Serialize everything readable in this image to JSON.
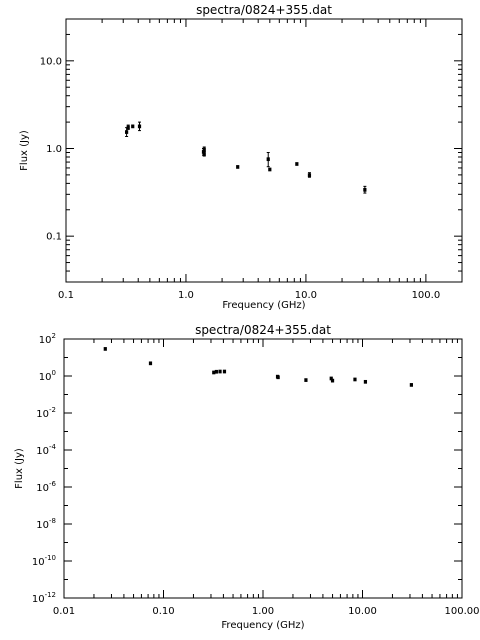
{
  "chart_data": [
    {
      "type": "scatter",
      "title": "spectra/0824+355.dat",
      "xlabel": "Frequency (GHz)",
      "ylabel": "Flux (Jy)",
      "x_scale": "log",
      "y_scale": "log",
      "xlim": [
        0.1,
        200
      ],
      "ylim": [
        0.03,
        30
      ],
      "x_ticks": [
        0.1,
        1.0,
        10.0,
        100.0
      ],
      "x_tick_labels": [
        "0.1",
        "1.0",
        "10.0",
        "100.0"
      ],
      "y_ticks": [
        0.1,
        1.0,
        10.0
      ],
      "y_tick_labels": [
        "0.1",
        "1.0",
        "10.0"
      ],
      "grid": false,
      "series": [
        {
          "points": [
            {
              "x": 0.32,
              "y": 1.55,
              "err": 0.18
            },
            {
              "x": 0.33,
              "y": 1.75,
              "err": 0.1
            },
            {
              "x": 0.36,
              "y": 1.8,
              "err": 0.0
            },
            {
              "x": 0.41,
              "y": 1.8,
              "err": 0.2
            },
            {
              "x": 1.4,
              "y": 0.92,
              "err": 0.08
            },
            {
              "x": 1.42,
              "y": 0.98,
              "err": 0.06
            },
            {
              "x": 1.42,
              "y": 0.87,
              "err": 0.05
            },
            {
              "x": 2.7,
              "y": 0.62,
              "err": 0.0
            },
            {
              "x": 4.85,
              "y": 0.76,
              "err": 0.14
            },
            {
              "x": 5.0,
              "y": 0.58,
              "err": 0.0
            },
            {
              "x": 8.4,
              "y": 0.67,
              "err": 0.0
            },
            {
              "x": 10.7,
              "y": 0.5,
              "err": 0.03
            },
            {
              "x": 31.0,
              "y": 0.34,
              "err": 0.03
            }
          ]
        }
      ]
    },
    {
      "type": "scatter",
      "title": "spectra/0824+355.dat",
      "xlabel": "Frequency (GHz)",
      "ylabel": "Flux (Jy)",
      "x_scale": "log",
      "y_scale": "log",
      "xlim": [
        0.01,
        100
      ],
      "ylim": [
        1e-12,
        100
      ],
      "x_ticks": [
        0.01,
        0.1,
        1.0,
        10.0,
        100.0
      ],
      "x_tick_labels": [
        "0.01",
        "0.10",
        "1.00",
        "10.00",
        "100.00"
      ],
      "y_ticks": [
        1e-12,
        1e-10,
        1e-08,
        1e-06,
        0.0001,
        0.01,
        1,
        100
      ],
      "y_tick_labels": [
        {
          "base": "10",
          "exp": "-12"
        },
        {
          "base": "10",
          "exp": "-10"
        },
        {
          "base": "10",
          "exp": "-8"
        },
        {
          "base": "10",
          "exp": "-6"
        },
        {
          "base": "10",
          "exp": "-4"
        },
        {
          "base": "10",
          "exp": "-2"
        },
        {
          "base": "10",
          "exp": "0"
        },
        {
          "base": "10",
          "exp": "2"
        }
      ],
      "grid": false,
      "series": [
        {
          "points": [
            {
              "x": 0.026,
              "y": 30
            },
            {
              "x": 0.074,
              "y": 5
            },
            {
              "x": 0.32,
              "y": 1.6
            },
            {
              "x": 0.34,
              "y": 1.75
            },
            {
              "x": 0.37,
              "y": 1.8
            },
            {
              "x": 0.41,
              "y": 1.8
            },
            {
              "x": 1.4,
              "y": 0.95
            },
            {
              "x": 1.42,
              "y": 0.88
            },
            {
              "x": 2.7,
              "y": 0.62
            },
            {
              "x": 4.85,
              "y": 0.76
            },
            {
              "x": 5.0,
              "y": 0.58
            },
            {
              "x": 8.4,
              "y": 0.67
            },
            {
              "x": 10.7,
              "y": 0.5
            },
            {
              "x": 31.0,
              "y": 0.34
            }
          ]
        }
      ]
    }
  ]
}
